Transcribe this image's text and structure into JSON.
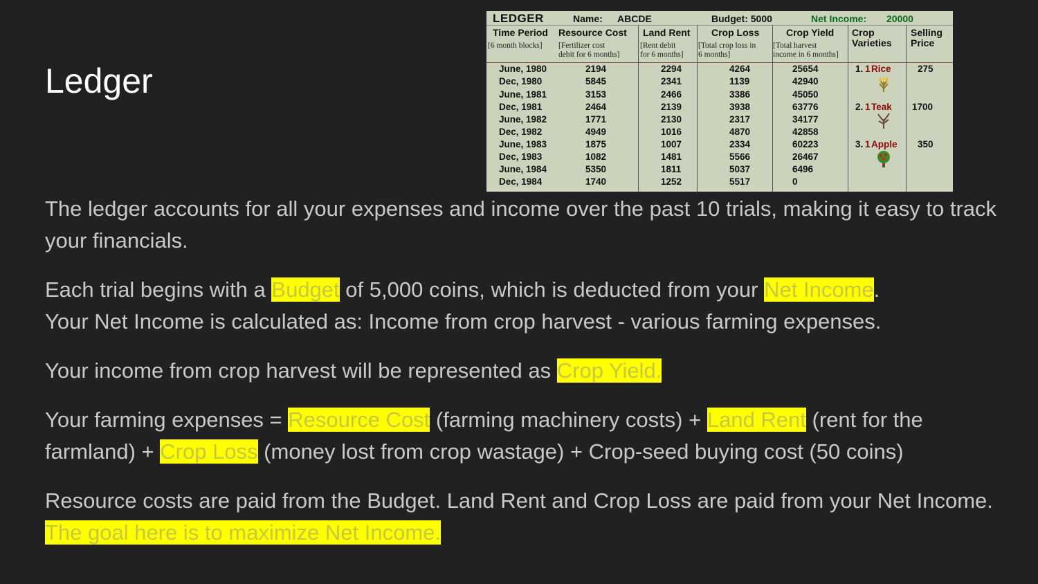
{
  "title": "Ledger",
  "ledger": {
    "title": "LEDGER",
    "name_label": "Name:",
    "name_value": "ABCDE",
    "budget": "Budget: 5000",
    "net_income_label": "Net Income:",
    "net_income_value": "20000",
    "columns": [
      {
        "title": "Time Period",
        "sub": [
          "[6 month blocks]"
        ]
      },
      {
        "title": "Resource Cost",
        "sub": [
          "[Fertilizer cost",
          "debit for 6 months]"
        ]
      },
      {
        "title": "Land Rent",
        "sub": [
          "[Rent debit",
          "for 6 months]"
        ]
      },
      {
        "title": "Crop Loss",
        "sub": [
          "[Total crop loss in",
          "6 months]"
        ]
      },
      {
        "title": "Crop Yield",
        "sub": [
          "[Total harvest",
          "income in 6 months]"
        ]
      },
      {
        "title": "Crop Varieties",
        "sub": []
      },
      {
        "title": "Selling Price",
        "sub": []
      }
    ],
    "rows": [
      {
        "period": "June, 1980",
        "resource": "2194",
        "rent": "2294",
        "loss": "4264",
        "yield": "25654"
      },
      {
        "period": "Dec, 1980",
        "resource": "5845",
        "rent": "2341",
        "loss": "1139",
        "yield": "42940"
      },
      {
        "period": "June, 1981",
        "resource": "3153",
        "rent": "2466",
        "loss": "3386",
        "yield": "45050"
      },
      {
        "period": "Dec, 1981",
        "resource": "2464",
        "rent": "2139",
        "loss": "3938",
        "yield": "63776"
      },
      {
        "period": "June, 1982",
        "resource": "1771",
        "rent": "2130",
        "loss": "2317",
        "yield": "34177"
      },
      {
        "period": "Dec, 1982",
        "resource": "4949",
        "rent": "1016",
        "loss": "4870",
        "yield": "42858"
      },
      {
        "period": "June, 1983",
        "resource": "1875",
        "rent": "1007",
        "loss": "2334",
        "yield": "60223"
      },
      {
        "period": "Dec, 1983",
        "resource": "1082",
        "rent": "1481",
        "loss": "5566",
        "yield": "26467"
      },
      {
        "period": "June, 1984",
        "resource": "5350",
        "rent": "1811",
        "loss": "5037",
        "yield": "6496"
      },
      {
        "period": "Dec, 1984",
        "resource": "1740",
        "rent": "1252",
        "loss": "5517",
        "yield": "0"
      }
    ],
    "crops": [
      {
        "num": "1.",
        "count": "1",
        "name": "Rice",
        "price": "275",
        "icon": "rice-icon"
      },
      {
        "num": "2.",
        "count": "1",
        "name": "Teak",
        "price": "1700",
        "icon": "teak-tree-icon"
      },
      {
        "num": "3.",
        "count": "1",
        "name": "Apple",
        "price": "350",
        "icon": "apple-tree-icon"
      }
    ]
  },
  "para1": "The ledger accounts for all your expenses and income over the past 10 trials, making it easy to track your financials.",
  "para2": {
    "a": "Each trial begins with a ",
    "b": "Budget",
    "c": " of 5,000 coins, which is deducted from your ",
    "d": "Net Income",
    "e": ".",
    "f": "Your Net Income is calculated as: Income from crop harvest - various farming expenses."
  },
  "para3": {
    "a": "Your income from crop harvest will be represented as ",
    "b": "Crop Yield."
  },
  "para4": {
    "a": "Your farming expenses = ",
    "b": "Resource Cost",
    "c": " (farming machinery costs) + ",
    "d": "Land Rent",
    "e": " (rent for the farmland) + ",
    "f": "Crop Loss",
    "g": " (money lost from crop wastage) + Crop-seed buying cost (50 coins)"
  },
  "para5": {
    "a": "Resource costs are paid from the Budget. Land Rent and Crop Loss are paid from your Net Income. ",
    "b": "The goal here is to maximize Net Income."
  }
}
